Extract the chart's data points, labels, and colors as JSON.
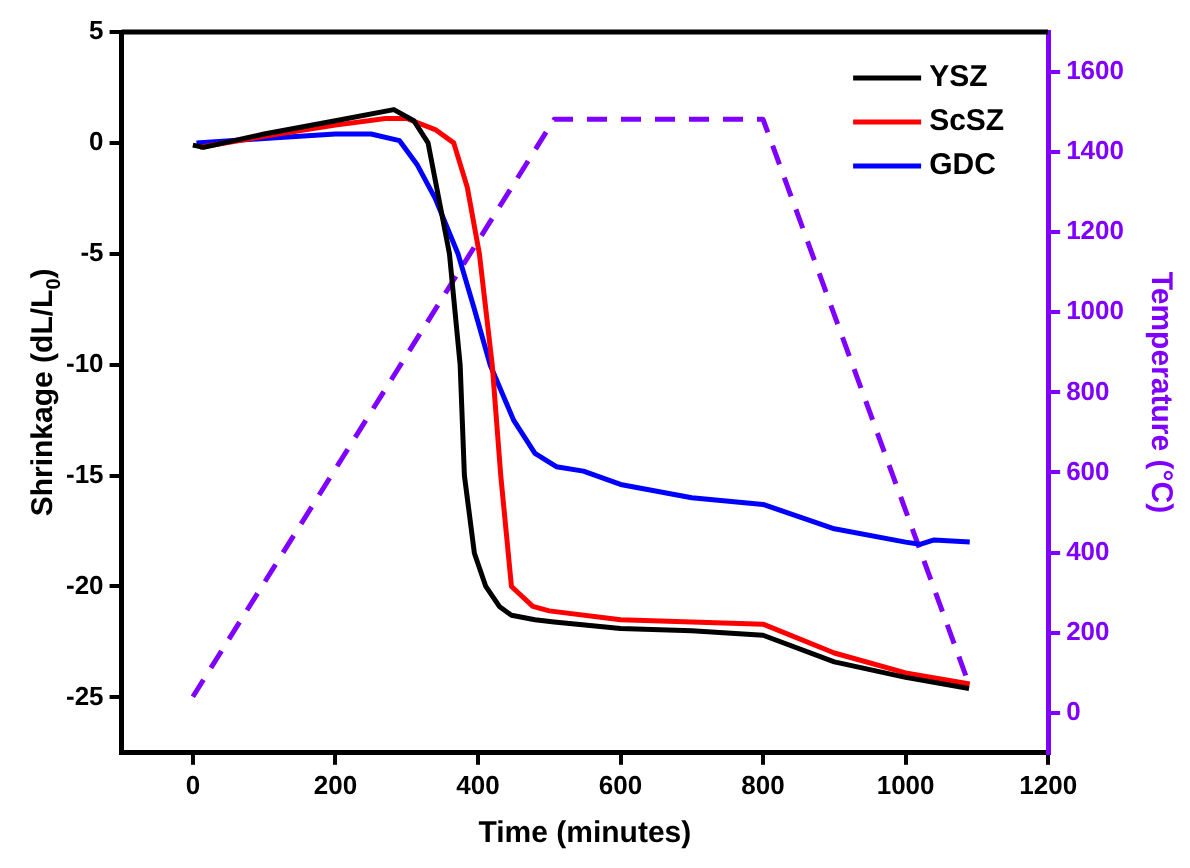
{
  "chart_data": {
    "type": "line",
    "xlabel": "Time (minutes)",
    "ylabel": "Shrinkage (dL/L$_{0}$)",
    "y2label": "Temperature (°C)",
    "xlim": [
      -100,
      1200
    ],
    "xticks": [
      0,
      200,
      400,
      600,
      800,
      1000,
      1200
    ],
    "ylim": [
      -27.5,
      5
    ],
    "yticks": [
      -25,
      -20,
      -15,
      -10,
      -5,
      0,
      5
    ],
    "y2lim": [
      -100,
      1700
    ],
    "y2ticks": [
      0,
      200,
      400,
      600,
      800,
      1000,
      1200,
      1400,
      1600
    ],
    "legend": "top right",
    "marker": "none",
    "series": [
      {
        "name": "YSZ",
        "color": "#000000",
        "x": [
          0,
          15,
          100,
          200,
          282,
          310,
          330,
          360,
          375,
          381,
          395,
          411,
          430,
          447,
          480,
          507,
          600,
          700,
          800,
          900,
          1000,
          1089
        ],
        "values": [
          -0.1,
          -0.2,
          0.4,
          1.0,
          1.5,
          1.0,
          0,
          -5,
          -10,
          -15,
          -18.5,
          -20,
          -20.9,
          -21.3,
          -21.5,
          -21.6,
          -21.9,
          -22.0,
          -22.2,
          -23.4,
          -24.1,
          -24.6
        ]
      },
      {
        "name": "ScSZ",
        "color": "#ff0000",
        "x": [
          10,
          100,
          200,
          270,
          300,
          340,
          366,
          385,
          402,
          420,
          432,
          447,
          477,
          500,
          600,
          700,
          800,
          900,
          1000,
          1090
        ],
        "values": [
          -0.2,
          0.3,
          0.8,
          1.1,
          1.1,
          0.6,
          0,
          -2,
          -5,
          -10,
          -15,
          -20,
          -20.9,
          -21.1,
          -21.5,
          -21.6,
          -21.7,
          -23,
          -23.9,
          -24.4
        ]
      },
      {
        "name": "GDC",
        "color": "#0000ff",
        "x": [
          5,
          100,
          200,
          250,
          290,
          315,
          340,
          372,
          395,
          417,
          450,
          480,
          510,
          548,
          600,
          700,
          800,
          900,
          1000,
          1020,
          1040,
          1090
        ],
        "values": [
          0,
          0.2,
          0.4,
          0.4,
          0.1,
          -1,
          -2.5,
          -5,
          -7.5,
          -10,
          -12.5,
          -14,
          -14.6,
          -14.8,
          -15.4,
          -16,
          -16.3,
          -17.4,
          -18,
          -18.1,
          -17.9,
          -18
        ]
      },
      {
        "color": "#8000ff",
        "axis": "y2",
        "line_style": "dashed",
        "x": [
          0,
          507,
          800,
          1085
        ],
        "values": [
          40,
          1482,
          1482,
          90
        ]
      }
    ]
  }
}
